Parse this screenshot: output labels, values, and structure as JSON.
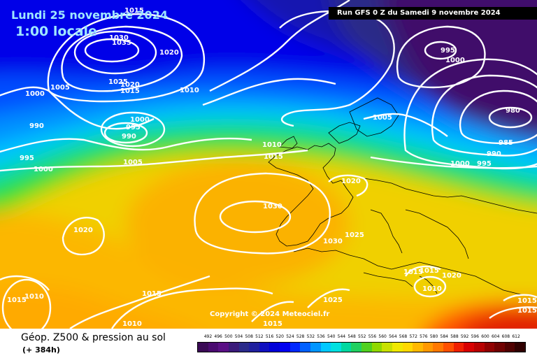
{
  "header": {
    "date": "Lundi 25 novembre 2024",
    "local_time": "1:00 locale",
    "run": "Run GFS 0 Z du Samedi 9 novembre 2024"
  },
  "copyright": "Copyright © 2024 Meteociel.fr",
  "legend": {
    "title": "Géop. Z500 & pression au sol",
    "lead_time": "(+ 384h)",
    "ticks": [
      "492",
      "496",
      "500",
      "504",
      "508",
      "512",
      "516",
      "520",
      "524",
      "528",
      "532",
      "536",
      "540",
      "544",
      "548",
      "552",
      "556",
      "560",
      "564",
      "568",
      "572",
      "576",
      "580",
      "584",
      "588",
      "592",
      "596",
      "600",
      "604",
      "608",
      "612"
    ],
    "colors": [
      "#3a0a55",
      "#4a0a70",
      "#5a0f85",
      "#3a1a7a",
      "#2a2a8a",
      "#20209e",
      "#1010c0",
      "#0000d8",
      "#0000f0",
      "#0028ff",
      "#0060ff",
      "#0095ff",
      "#00c8ff",
      "#00e0e0",
      "#00d8a0",
      "#20d060",
      "#50d020",
      "#90d800",
      "#c8e000",
      "#f0e800",
      "#ffd800",
      "#ffb800",
      "#ff9800",
      "#ff7800",
      "#ff5000",
      "#f02000",
      "#d80000",
      "#b80000",
      "#900000",
      "#700000",
      "#500000",
      "#300000"
    ]
  },
  "isobar_labels": [
    {
      "text": "1015"
    },
    {
      "text": "1035"
    },
    {
      "text": "1030"
    },
    {
      "text": "1020"
    },
    {
      "text": "1025"
    },
    {
      "text": "1020"
    },
    {
      "text": "1015"
    },
    {
      "text": "1005"
    },
    {
      "text": "1000"
    },
    {
      "text": "990"
    },
    {
      "text": "995"
    },
    {
      "text": "1000"
    },
    {
      "text": "995"
    },
    {
      "text": "990"
    },
    {
      "text": "1005"
    },
    {
      "text": "1010"
    },
    {
      "text": "1000"
    },
    {
      "text": "1005"
    },
    {
      "text": "995"
    },
    {
      "text": "1000"
    },
    {
      "text": "980"
    },
    {
      "text": "985"
    },
    {
      "text": "990"
    },
    {
      "text": "995"
    },
    {
      "text": "1000"
    },
    {
      "text": "1010"
    },
    {
      "text": "1015"
    },
    {
      "text": "1020"
    },
    {
      "text": "1030"
    },
    {
      "text": "1025"
    },
    {
      "text": "1030"
    },
    {
      "text": "1020"
    },
    {
      "text": "1015"
    },
    {
      "text": "1010"
    },
    {
      "text": "1015"
    },
    {
      "text": "1010"
    },
    {
      "text": "1015"
    },
    {
      "text": "1010"
    },
    {
      "text": "1015"
    },
    {
      "text": "1020"
    },
    {
      "text": "1025"
    },
    {
      "text": "1015"
    },
    {
      "text": "1015"
    },
    {
      "text": "1015"
    }
  ]
}
